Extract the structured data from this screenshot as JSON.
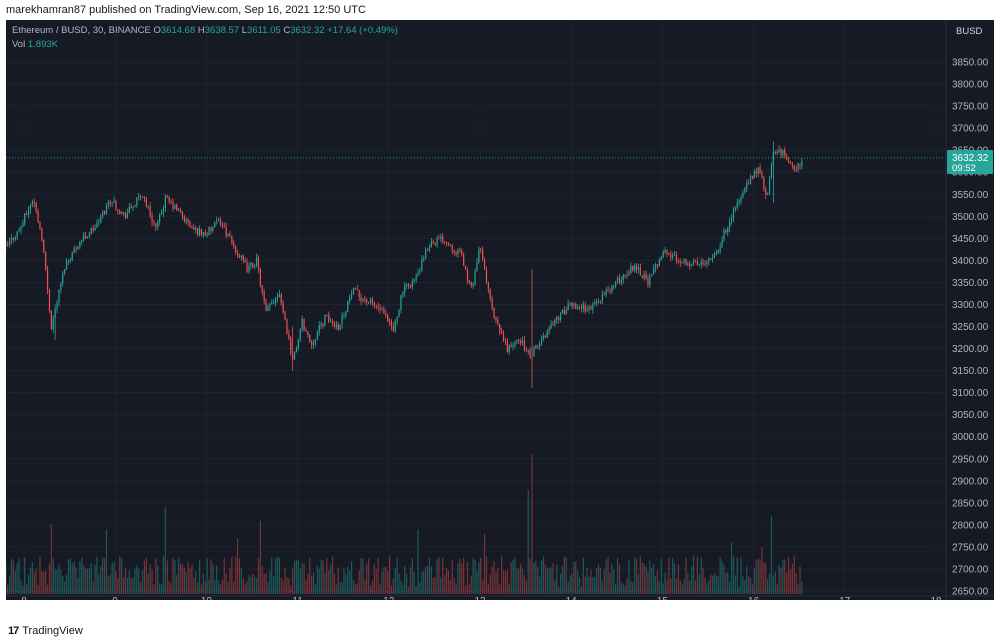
{
  "header": {
    "published_text": "marekhamran87 published on TradingView.com, Sep 16, 2021 12:50 UTC"
  },
  "legend": {
    "symbol": "Ethereum / BUSD, 30, BINANCE",
    "open_label": "O",
    "open": "3614.68",
    "high_label": "H",
    "high": "3638.57",
    "low_label": "L",
    "low": "3611.05",
    "close_label": "C",
    "close": "3632.32",
    "change": "+17.64 (+0.49%)",
    "vol_label": "Vol",
    "vol": "1.893K"
  },
  "price_axis": {
    "currency": "BUSD",
    "ticks": [
      "3850.00",
      "3800.00",
      "3750.00",
      "3700.00",
      "3650.00",
      "3600.00",
      "3550.00",
      "3500.00",
      "3450.00",
      "3400.00",
      "3350.00",
      "3300.00",
      "3250.00",
      "3200.00",
      "3150.00",
      "3100.00",
      "3050.00",
      "3000.00",
      "2950.00",
      "2900.00",
      "2850.00",
      "2800.00",
      "2750.00",
      "2700.00",
      "2650.00"
    ],
    "current_price": "3632.32",
    "countdown": "09:52"
  },
  "time_axis": {
    "ticks": [
      "8",
      "9",
      "10",
      "11",
      "12",
      "13",
      "14",
      "15",
      "16",
      "17",
      "18"
    ]
  },
  "footer": {
    "brand": "TradingView"
  },
  "colors": {
    "up": "#26a69a",
    "down": "#ef5350",
    "background": "#161a25",
    "grid": "#1f2330"
  },
  "chart_data": {
    "type": "candlestick",
    "interval": "30",
    "ylim": [
      2630,
      3900
    ],
    "x_ticks": [
      "8",
      "9",
      "10",
      "11",
      "12",
      "13",
      "14",
      "15",
      "16",
      "17",
      "18"
    ],
    "anchors": [
      {
        "day": 7.8,
        "price": 3430
      },
      {
        "day": 7.95,
        "price": 3470
      },
      {
        "day": 8.1,
        "price": 3540
      },
      {
        "day": 8.2,
        "price": 3450
      },
      {
        "day": 8.3,
        "price": 3250
      },
      {
        "day": 8.45,
        "price": 3390
      },
      {
        "day": 8.6,
        "price": 3440
      },
      {
        "day": 8.8,
        "price": 3480
      },
      {
        "day": 8.95,
        "price": 3540
      },
      {
        "day": 9.1,
        "price": 3500
      },
      {
        "day": 9.3,
        "price": 3550
      },
      {
        "day": 9.45,
        "price": 3470
      },
      {
        "day": 9.55,
        "price": 3540
      },
      {
        "day": 9.7,
        "price": 3510
      },
      {
        "day": 9.85,
        "price": 3470
      },
      {
        "day": 10.0,
        "price": 3460
      },
      {
        "day": 10.15,
        "price": 3490
      },
      {
        "day": 10.3,
        "price": 3430
      },
      {
        "day": 10.45,
        "price": 3380
      },
      {
        "day": 10.55,
        "price": 3400
      },
      {
        "day": 10.65,
        "price": 3280
      },
      {
        "day": 10.8,
        "price": 3330
      },
      {
        "day": 10.95,
        "price": 3170
      },
      {
        "day": 11.05,
        "price": 3260
      },
      {
        "day": 11.15,
        "price": 3210
      },
      {
        "day": 11.3,
        "price": 3270
      },
      {
        "day": 11.45,
        "price": 3250
      },
      {
        "day": 11.6,
        "price": 3330
      },
      {
        "day": 11.75,
        "price": 3310
      },
      {
        "day": 11.9,
        "price": 3290
      },
      {
        "day": 12.05,
        "price": 3240
      },
      {
        "day": 12.15,
        "price": 3330
      },
      {
        "day": 12.3,
        "price": 3360
      },
      {
        "day": 12.45,
        "price": 3440
      },
      {
        "day": 12.6,
        "price": 3450
      },
      {
        "day": 12.8,
        "price": 3410
      },
      {
        "day": 12.9,
        "price": 3330
      },
      {
        "day": 13.0,
        "price": 3430
      },
      {
        "day": 13.15,
        "price": 3270
      },
      {
        "day": 13.3,
        "price": 3200
      },
      {
        "day": 13.45,
        "price": 3220
      },
      {
        "day": 13.55,
        "price": 3180
      },
      {
        "day": 13.65,
        "price": 3210
      },
      {
        "day": 13.8,
        "price": 3260
      },
      {
        "day": 14.0,
        "price": 3300
      },
      {
        "day": 14.2,
        "price": 3290
      },
      {
        "day": 14.4,
        "price": 3330
      },
      {
        "day": 14.55,
        "price": 3360
      },
      {
        "day": 14.7,
        "price": 3390
      },
      {
        "day": 14.85,
        "price": 3350
      },
      {
        "day": 15.0,
        "price": 3420
      },
      {
        "day": 15.2,
        "price": 3400
      },
      {
        "day": 15.4,
        "price": 3390
      },
      {
        "day": 15.6,
        "price": 3420
      },
      {
        "day": 15.75,
        "price": 3500
      },
      {
        "day": 15.9,
        "price": 3560
      },
      {
        "day": 16.05,
        "price": 3610
      },
      {
        "day": 16.15,
        "price": 3540
      },
      {
        "day": 16.22,
        "price": 3650
      },
      {
        "day": 16.35,
        "price": 3640
      },
      {
        "day": 16.45,
        "price": 3600
      },
      {
        "day": 16.55,
        "price": 3632
      }
    ],
    "spikes": [
      {
        "day": 8.35,
        "high": 3300,
        "low": 3220
      },
      {
        "day": 10.95,
        "high": 3250,
        "low": 3150
      },
      {
        "day": 13.57,
        "high": 3380,
        "low": 3110
      },
      {
        "day": 16.22,
        "high": 3670,
        "low": 3530
      }
    ],
    "volume": {
      "max": 2960,
      "spikes": [
        {
          "day": 13.57,
          "top": 2960
        },
        {
          "day": 13.52,
          "top": 2880
        },
        {
          "day": 9.55,
          "top": 2840
        },
        {
          "day": 16.2,
          "top": 2820
        },
        {
          "day": 10.6,
          "top": 2810
        },
        {
          "day": 8.3,
          "top": 2800
        },
        {
          "day": 8.9,
          "top": 2790
        },
        {
          "day": 12.32,
          "top": 2790
        },
        {
          "day": 13.05,
          "top": 2780
        },
        {
          "day": 10.35,
          "top": 2770
        },
        {
          "day": 15.75,
          "top": 2760
        },
        {
          "day": 16.1,
          "top": 2750
        }
      ]
    }
  }
}
